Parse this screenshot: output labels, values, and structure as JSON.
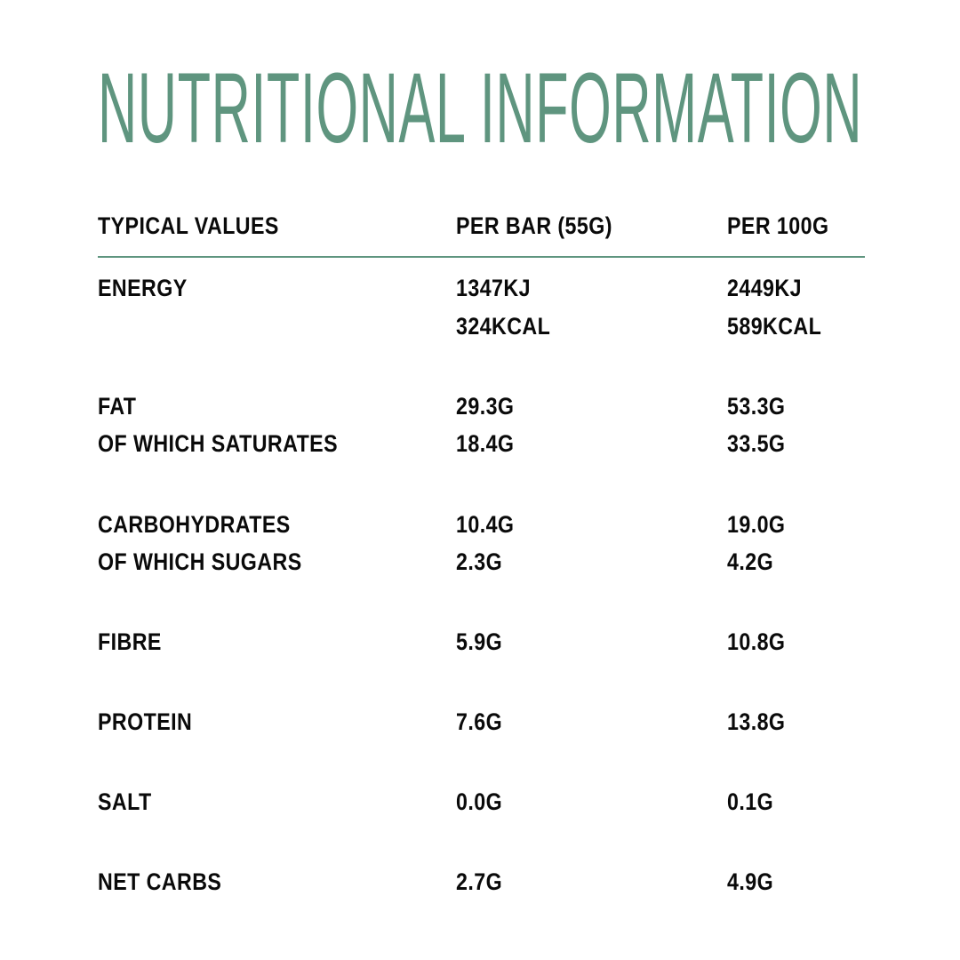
{
  "title": "NUTRITIONAL INFORMATION",
  "accent_color": "#5f957f",
  "header": [
    "TYPICAL VALUES",
    "PER BAR (55G)",
    "PER 100G"
  ],
  "rows": [
    [
      "ENERGY",
      "1347KJ",
      "2449KJ"
    ],
    [
      "",
      "324KCAL",
      "589KCAL"
    ],
    [
      "FAT",
      "29.3G",
      "53.3G"
    ],
    [
      "OF WHICH SATURATES",
      "18.4G",
      "33.5G"
    ],
    [
      "CARBOHYDRATES",
      "10.4G",
      "19.0G"
    ],
    [
      "OF WHICH SUGARS",
      "2.3G",
      "4.2G"
    ],
    [
      "FIBRE",
      "5.9G",
      "10.8G"
    ],
    [
      "PROTEIN",
      "7.6G",
      "13.8G"
    ],
    [
      "SALT",
      "0.0G",
      "0.1G"
    ],
    [
      "NET CARBS",
      "2.7G",
      "4.9G"
    ]
  ]
}
